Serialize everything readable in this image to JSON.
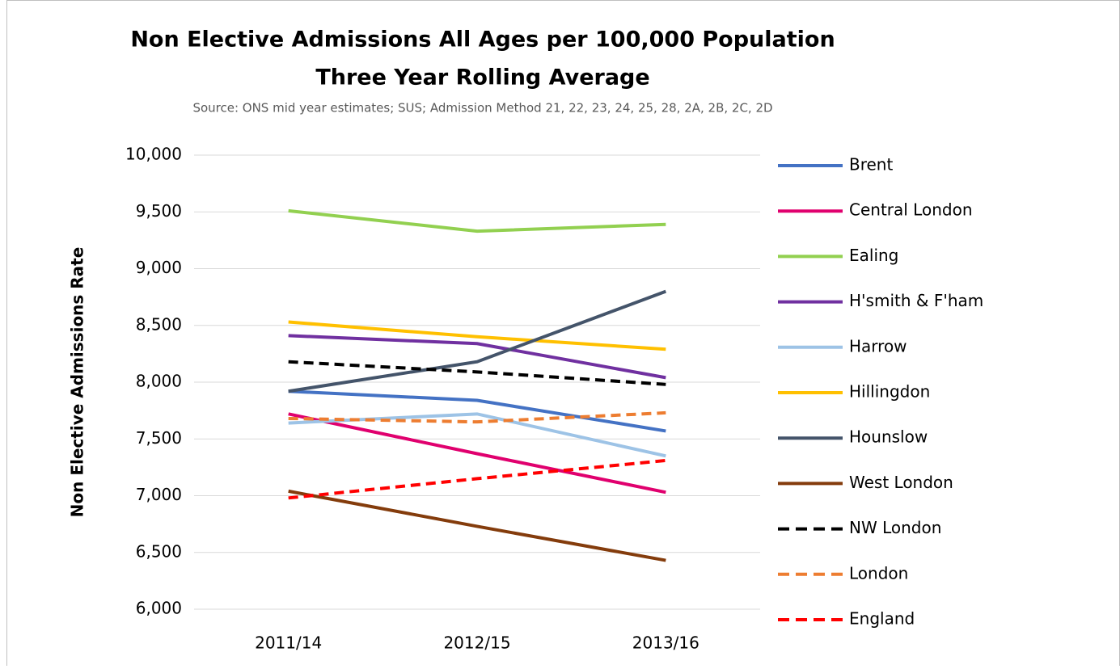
{
  "chart_data": {
    "type": "line",
    "title": [
      "Non Elective Admissions All Ages per 100,000 Population",
      "Three Year Rolling Average"
    ],
    "subtitle": "Source: ONS mid year estimates; SUS; Admission Method 21, 22, 23, 24, 25, 28, 2A, 2B, 2C, 2D",
    "y_label": "Non Elective Admissions Rate",
    "categories": [
      "2011/14",
      "2012/15",
      "2013/16"
    ],
    "ylim": [
      6000,
      10000
    ],
    "yticks": [
      {
        "value": 6000,
        "label": "6,000"
      },
      {
        "value": 6500,
        "label": "6,500"
      },
      {
        "value": 7000,
        "label": "7,000"
      },
      {
        "value": 7500,
        "label": "7,500"
      },
      {
        "value": 8000,
        "label": "8,000"
      },
      {
        "value": 8500,
        "label": "8,500"
      },
      {
        "value": 9000,
        "label": "9,000"
      },
      {
        "value": 9500,
        "label": "9,500"
      },
      {
        "value": 10000,
        "label": "10,000"
      }
    ],
    "grid": true,
    "legend": "right",
    "series": [
      {
        "name": "Brent",
        "color": "#4472c4",
        "values": [
          7920,
          7840,
          7570
        ]
      },
      {
        "name": "Central London",
        "color": "#e0006e",
        "values": [
          7720,
          7370,
          7030
        ]
      },
      {
        "name": "Ealing",
        "color": "#92d050",
        "values": [
          9510,
          9330,
          9390
        ]
      },
      {
        "name": "H'smith & F'ham",
        "color": "#7030a0",
        "values": [
          8410,
          8340,
          8040
        ]
      },
      {
        "name": "Harrow",
        "color": "#9dc3e6",
        "values": [
          7640,
          7720,
          7350
        ]
      },
      {
        "name": "Hillingdon",
        "color": "#ffc000",
        "values": [
          8530,
          8400,
          8290
        ]
      },
      {
        "name": "Hounslow",
        "color": "#44546a",
        "values": [
          7920,
          8180,
          8800
        ]
      },
      {
        "name": "West London",
        "color": "#843c0c",
        "values": [
          7040,
          6730,
          6430
        ]
      },
      {
        "name": "NW London",
        "color": "#000000",
        "dashed": true,
        "values": [
          8180,
          8090,
          7980
        ]
      },
      {
        "name": "London",
        "color": "#ed7d31",
        "dashed": true,
        "values": [
          7680,
          7650,
          7730
        ]
      },
      {
        "name": "England",
        "color": "#ff0000",
        "dashed": true,
        "values": [
          6980,
          7150,
          7310
        ]
      }
    ]
  }
}
